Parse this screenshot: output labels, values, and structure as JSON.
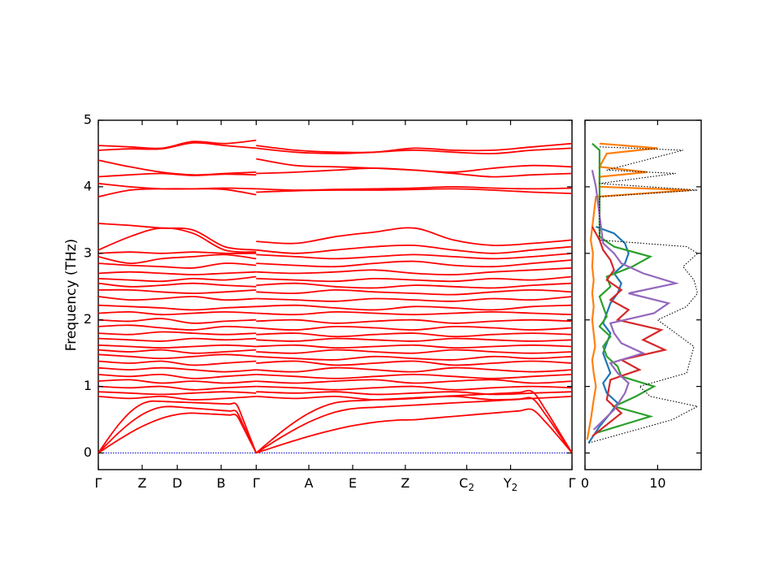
{
  "chart_data": [
    {
      "type": "line",
      "ylabel": "Frequency (THz)",
      "xlabel": "",
      "ylim": [
        -0.25,
        5.0
      ],
      "y_ticks": [
        0,
        1,
        2,
        3,
        4,
        5
      ],
      "band_color": "#ff0000",
      "zero_line_color": "#0000cc",
      "high_symmetry_points": [
        {
          "label": "Γ",
          "sub": "",
          "pos": 0.0
        },
        {
          "label": "Z",
          "sub": "",
          "pos": 0.5
        },
        {
          "label": "D",
          "sub": "",
          "pos": 0.9
        },
        {
          "label": "B",
          "sub": "",
          "pos": 1.4
        },
        {
          "label": "Γ",
          "sub": "",
          "pos": 1.8
        },
        {
          "label": "A",
          "sub": "",
          "pos": 2.4
        },
        {
          "label": "E",
          "sub": "",
          "pos": 2.9
        },
        {
          "label": "Z",
          "sub": "",
          "pos": 3.5
        },
        {
          "label": "C",
          "sub": "2",
          "pos": 4.2
        },
        {
          "label": "Y",
          "sub": "2",
          "pos": 4.7
        },
        {
          "label": "Γ",
          "sub": "",
          "pos": 5.4
        }
      ],
      "segments": [
        {
          "from": 0.0,
          "to": 1.8,
          "acoustic": [
            {
              "peak": 0.78,
              "peak_at": 0.35,
              "end": 0.72
            },
            {
              "peak": 0.7,
              "peak_at": 0.45,
              "end": 0.6
            },
            {
              "peak": 0.6,
              "peak_at": 0.6,
              "end": 0.55
            }
          ],
          "optical": [
            [
              4.62,
              4.6,
              4.58,
              4.68,
              4.65,
              4.7
            ],
            [
              4.55,
              4.57,
              4.57,
              4.66,
              4.62,
              4.58
            ],
            [
              4.4,
              4.3,
              4.22,
              4.18,
              4.2,
              4.22
            ],
            [
              4.15,
              4.18,
              4.2,
              4.17,
              4.19,
              4.18
            ],
            [
              4.05,
              4.0,
              3.97,
              3.97,
              3.98,
              3.97
            ],
            [
              3.85,
              3.95,
              3.97,
              3.97,
              3.96,
              3.88
            ],
            [
              3.45,
              3.42,
              3.38,
              3.35,
              3.1,
              3.05
            ],
            [
              3.05,
              3.25,
              3.38,
              3.3,
              3.05,
              3.02
            ],
            [
              3.0,
              3.02,
              3.0,
              3.02,
              3.0,
              3.0
            ],
            [
              2.95,
              2.85,
              2.92,
              2.95,
              2.98,
              2.92
            ],
            [
              2.85,
              2.82,
              2.8,
              2.78,
              2.85,
              2.82
            ],
            [
              2.7,
              2.72,
              2.7,
              2.68,
              2.7,
              2.72
            ],
            [
              2.62,
              2.6,
              2.58,
              2.62,
              2.6,
              2.65
            ],
            [
              2.55,
              2.5,
              2.52,
              2.55,
              2.52,
              2.5
            ],
            [
              2.45,
              2.45,
              2.42,
              2.4,
              2.42,
              2.45
            ],
            [
              2.35,
              2.3,
              2.32,
              2.35,
              2.3,
              2.32
            ],
            [
              2.22,
              2.2,
              2.18,
              2.15,
              2.18,
              2.2
            ],
            [
              2.1,
              2.12,
              2.08,
              2.1,
              2.12,
              2.1
            ],
            [
              2.0,
              1.98,
              2.02,
              1.95,
              1.98,
              2.0
            ],
            [
              1.9,
              1.92,
              1.88,
              1.85,
              1.9,
              1.88
            ],
            [
              1.8,
              1.78,
              1.82,
              1.8,
              1.78,
              1.8
            ],
            [
              1.72,
              1.7,
              1.68,
              1.72,
              1.7,
              1.72
            ],
            [
              1.62,
              1.6,
              1.58,
              1.6,
              1.62,
              1.6
            ],
            [
              1.55,
              1.52,
              1.55,
              1.5,
              1.52,
              1.55
            ],
            [
              1.48,
              1.45,
              1.42,
              1.45,
              1.48,
              1.45
            ],
            [
              1.38,
              1.35,
              1.38,
              1.32,
              1.35,
              1.38
            ],
            [
              1.28,
              1.25,
              1.28,
              1.25,
              1.22,
              1.25
            ],
            [
              1.18,
              1.15,
              1.18,
              1.12,
              1.15,
              1.18
            ],
            [
              1.08,
              1.1,
              1.05,
              1.08,
              1.05,
              1.08
            ],
            [
              1.0,
              0.98,
              1.0,
              0.95,
              0.98,
              1.0
            ],
            [
              0.92,
              0.9,
              0.88,
              0.9,
              0.92,
              0.9
            ],
            [
              0.85,
              0.82,
              0.85,
              0.8,
              0.82,
              0.85
            ]
          ]
        },
        {
          "from": 1.8,
          "to": 5.4,
          "acoustic": [
            {
              "peak": 0.78,
              "peak_at": 0.3,
              "end": 0.95
            },
            {
              "peak": 0.68,
              "peak_at": 0.35,
              "end": 0.85
            },
            {
              "peak": 0.5,
              "peak_at": 0.5,
              "end": 0.7
            }
          ],
          "optical": [
            [
              4.62,
              4.55,
              4.52,
              4.52,
              4.58,
              4.55,
              4.55,
              4.6,
              4.65
            ],
            [
              4.58,
              4.52,
              4.5,
              4.52,
              4.55,
              4.52,
              4.5,
              4.55,
              4.58
            ],
            [
              4.42,
              4.32,
              4.3,
              4.28,
              4.25,
              4.22,
              4.28,
              4.32,
              4.3
            ],
            [
              4.2,
              4.22,
              4.25,
              4.28,
              4.25,
              4.2,
              4.15,
              4.18,
              4.2
            ],
            [
              3.97,
              3.95,
              3.96,
              3.97,
              3.98,
              4.0,
              3.98,
              3.97,
              3.98
            ],
            [
              3.92,
              3.94,
              3.95,
              3.95,
              3.96,
              3.97,
              3.95,
              3.92,
              3.9
            ],
            [
              3.18,
              3.15,
              3.25,
              3.32,
              3.38,
              3.2,
              3.12,
              3.15,
              3.2
            ],
            [
              3.05,
              3.0,
              3.05,
              3.1,
              3.12,
              3.05,
              3.0,
              3.05,
              3.1
            ],
            [
              2.98,
              2.95,
              2.92,
              2.95,
              2.98,
              2.95,
              2.92,
              2.95,
              3.0
            ],
            [
              2.85,
              2.82,
              2.8,
              2.85,
              2.88,
              2.82,
              2.8,
              2.85,
              2.9
            ],
            [
              2.72,
              2.7,
              2.72,
              2.75,
              2.7,
              2.68,
              2.72,
              2.75,
              2.78
            ],
            [
              2.62,
              2.6,
              2.58,
              2.62,
              2.6,
              2.58,
              2.62,
              2.6,
              2.65
            ],
            [
              2.52,
              2.55,
              2.5,
              2.48,
              2.52,
              2.5,
              2.48,
              2.52,
              2.55
            ],
            [
              2.42,
              2.4,
              2.45,
              2.42,
              2.4,
              2.38,
              2.42,
              2.45,
              2.42
            ],
            [
              2.32,
              2.3,
              2.28,
              2.32,
              2.3,
              2.28,
              2.32,
              2.3,
              2.35
            ],
            [
              2.2,
              2.22,
              2.18,
              2.15,
              2.2,
              2.18,
              2.15,
              2.2,
              2.22
            ],
            [
              2.1,
              2.08,
              2.12,
              2.1,
              2.08,
              2.1,
              2.12,
              2.1,
              2.08
            ],
            [
              1.98,
              2.0,
              1.95,
              1.98,
              2.0,
              1.95,
              1.98,
              2.0,
              1.98
            ],
            [
              1.88,
              1.85,
              1.9,
              1.88,
              1.85,
              1.9,
              1.88,
              1.85,
              1.88
            ],
            [
              1.78,
              1.8,
              1.75,
              1.78,
              1.8,
              1.75,
              1.78,
              1.8,
              1.78
            ],
            [
              1.7,
              1.68,
              1.72,
              1.7,
              1.68,
              1.72,
              1.7,
              1.68,
              1.7
            ],
            [
              1.6,
              1.62,
              1.58,
              1.6,
              1.62,
              1.58,
              1.6,
              1.62,
              1.6
            ],
            [
              1.52,
              1.5,
              1.55,
              1.52,
              1.5,
              1.55,
              1.52,
              1.5,
              1.52
            ],
            [
              1.45,
              1.42,
              1.4,
              1.45,
              1.42,
              1.4,
              1.45,
              1.42,
              1.45
            ],
            [
              1.35,
              1.38,
              1.32,
              1.35,
              1.38,
              1.32,
              1.35,
              1.38,
              1.35
            ],
            [
              1.25,
              1.22,
              1.28,
              1.25,
              1.22,
              1.28,
              1.25,
              1.22,
              1.25
            ],
            [
              1.18,
              1.15,
              1.12,
              1.15,
              1.18,
              1.15,
              1.12,
              1.15,
              1.18
            ],
            [
              1.08,
              1.05,
              1.08,
              1.1,
              1.05,
              1.08,
              1.1,
              1.05,
              1.08
            ],
            [
              1.0,
              0.98,
              0.95,
              0.98,
              1.0,
              0.95,
              0.98,
              1.0,
              0.98
            ],
            [
              0.92,
              0.9,
              0.92,
              0.88,
              0.9,
              0.92,
              0.88,
              0.9,
              0.92
            ],
            [
              0.85,
              0.82,
              0.85,
              0.8,
              0.82,
              0.85,
              0.8,
              0.82,
              0.85
            ]
          ]
        }
      ]
    },
    {
      "type": "line",
      "xlabel": "",
      "ylabel": "",
      "xlim": [
        0,
        16
      ],
      "ylim": [
        -0.25,
        5.0
      ],
      "x_ticks": [
        0,
        10
      ],
      "x_tick_labels": [
        "0",
        "10"
      ],
      "series": [
        {
          "color": "#1f77b4",
          "style": "solid",
          "y": [
            0.15,
            0.4,
            0.6,
            0.75,
            0.9,
            1.05,
            1.2,
            1.35,
            1.5,
            1.65,
            1.8,
            1.95,
            2.1,
            2.25,
            2.4,
            2.55,
            2.7,
            2.85,
            3.0,
            3.15,
            3.3,
            3.4
          ],
          "x": [
            0.5,
            2.0,
            3.5,
            4.5,
            3.0,
            2.5,
            3.5,
            3.0,
            2.5,
            3.0,
            3.5,
            2.5,
            3.0,
            3.5,
            4.5,
            5.0,
            4.0,
            5.5,
            6.0,
            5.5,
            4.0,
            1.5
          ]
        },
        {
          "color": "#ff7f0e",
          "style": "solid",
          "y": [
            0.2,
            0.5,
            0.8,
            1.0,
            1.2,
            1.4,
            1.6,
            1.8,
            2.0,
            2.2,
            2.4,
            2.6,
            2.8,
            3.0,
            3.2,
            3.85,
            3.95,
            4.0,
            4.15,
            4.22,
            4.3,
            4.5,
            4.58,
            4.65
          ],
          "x": [
            0.3,
            0.8,
            1.2,
            1.5,
            1.2,
            1.0,
            1.4,
            1.2,
            1.0,
            1.2,
            1.0,
            1.2,
            1.0,
            1.1,
            0.8,
            1.5,
            14.5,
            2.0,
            2.0,
            8.5,
            2.0,
            3.0,
            10.0,
            2.0
          ]
        },
        {
          "color": "#2ca02c",
          "style": "solid",
          "y": [
            0.3,
            0.55,
            0.7,
            0.85,
            1.0,
            1.15,
            1.3,
            1.45,
            1.6,
            1.75,
            1.9,
            2.05,
            2.2,
            2.35,
            2.5,
            2.65,
            2.8,
            2.95,
            3.1,
            3.25,
            4.55,
            4.65
          ],
          "x": [
            1.5,
            9.0,
            4.0,
            7.0,
            9.5,
            5.0,
            4.5,
            3.0,
            2.5,
            3.5,
            2.0,
            3.0,
            2.5,
            2.0,
            3.5,
            3.0,
            6.5,
            9.0,
            4.0,
            2.0,
            2.0,
            1.0
          ]
        },
        {
          "color": "#d62728",
          "style": "solid",
          "y": [
            0.25,
            0.6,
            0.8,
            1.1,
            1.25,
            1.4,
            1.55,
            1.7,
            1.85,
            2.0,
            2.15,
            2.3,
            2.45,
            2.6,
            2.75,
            2.9,
            3.05,
            3.2,
            3.4
          ],
          "x": [
            1.0,
            5.0,
            3.0,
            3.5,
            7.5,
            5.0,
            11.0,
            8.0,
            10.5,
            4.5,
            6.0,
            3.5,
            5.0,
            3.0,
            4.0,
            3.5,
            2.5,
            2.0,
            1.0
          ]
        },
        {
          "color": "#9467bd",
          "style": "solid",
          "y": [
            0.35,
            0.65,
            0.9,
            1.05,
            1.2,
            1.35,
            1.5,
            1.65,
            1.8,
            1.95,
            2.1,
            2.25,
            2.4,
            2.55,
            2.7,
            2.85,
            3.0,
            3.15,
            4.0,
            4.25
          ],
          "x": [
            1.2,
            4.0,
            5.5,
            6.0,
            4.5,
            3.5,
            8.0,
            5.0,
            4.0,
            3.5,
            9.5,
            11.5,
            6.0,
            12.5,
            8.0,
            5.0,
            4.0,
            2.5,
            1.5,
            1.0
          ]
        },
        {
          "color": "#000000",
          "style": "dotted",
          "y": [
            0.15,
            0.5,
            0.7,
            0.85,
            1.0,
            1.2,
            1.4,
            1.6,
            1.8,
            2.0,
            2.2,
            2.4,
            2.6,
            2.8,
            3.0,
            3.1,
            3.2,
            3.85,
            3.95,
            4.05,
            4.2,
            4.25,
            4.55,
            4.6
          ],
          "x": [
            0.5,
            12.0,
            15.5,
            9.0,
            7.5,
            14.0,
            14.5,
            15.0,
            12.5,
            10.0,
            14.0,
            15.5,
            15.0,
            13.5,
            15.5,
            14.0,
            2.0,
            2.0,
            15.5,
            2.0,
            12.5,
            3.0,
            13.5,
            2.0
          ]
        }
      ]
    }
  ]
}
